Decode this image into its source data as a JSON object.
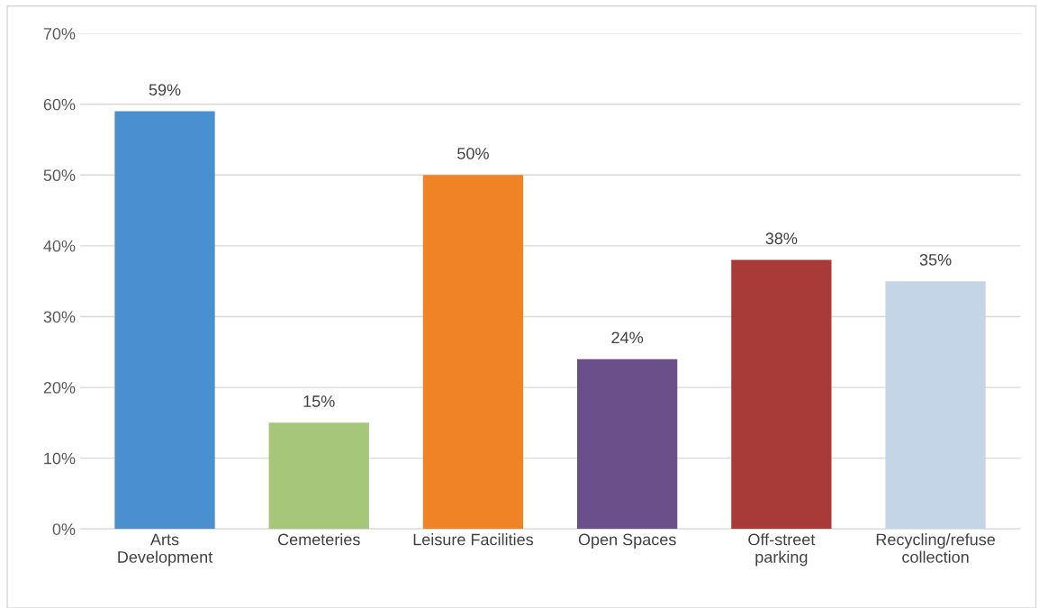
{
  "chart_data": {
    "type": "bar",
    "categories": [
      "Arts\nDevelopment",
      "Cemeteries",
      "Leisure Facilities",
      "Open Spaces",
      "Off-street\nparking",
      "Recycling/refuse\ncollection"
    ],
    "values": [
      59,
      15,
      50,
      24,
      38,
      35
    ],
    "colors": [
      "#4a90d0",
      "#a6c77a",
      "#f08326",
      "#6a4f8a",
      "#a83a38",
      "#c5d5e8"
    ],
    "ylim": [
      0,
      70
    ],
    "yticks": [
      {
        "value": 0,
        "label": "0%"
      },
      {
        "value": 10,
        "label": "10%"
      },
      {
        "value": 20,
        "label": "20%"
      },
      {
        "value": 30,
        "label": "30%"
      },
      {
        "value": 40,
        "label": "40%"
      },
      {
        "value": 50,
        "label": "50%"
      },
      {
        "value": 60,
        "label": "60%"
      },
      {
        "value": 70,
        "label": "70%"
      }
    ],
    "value_labels": [
      "59%",
      "15%",
      "50%",
      "24%",
      "38%",
      "35%"
    ],
    "grid": "y",
    "legend": false
  }
}
